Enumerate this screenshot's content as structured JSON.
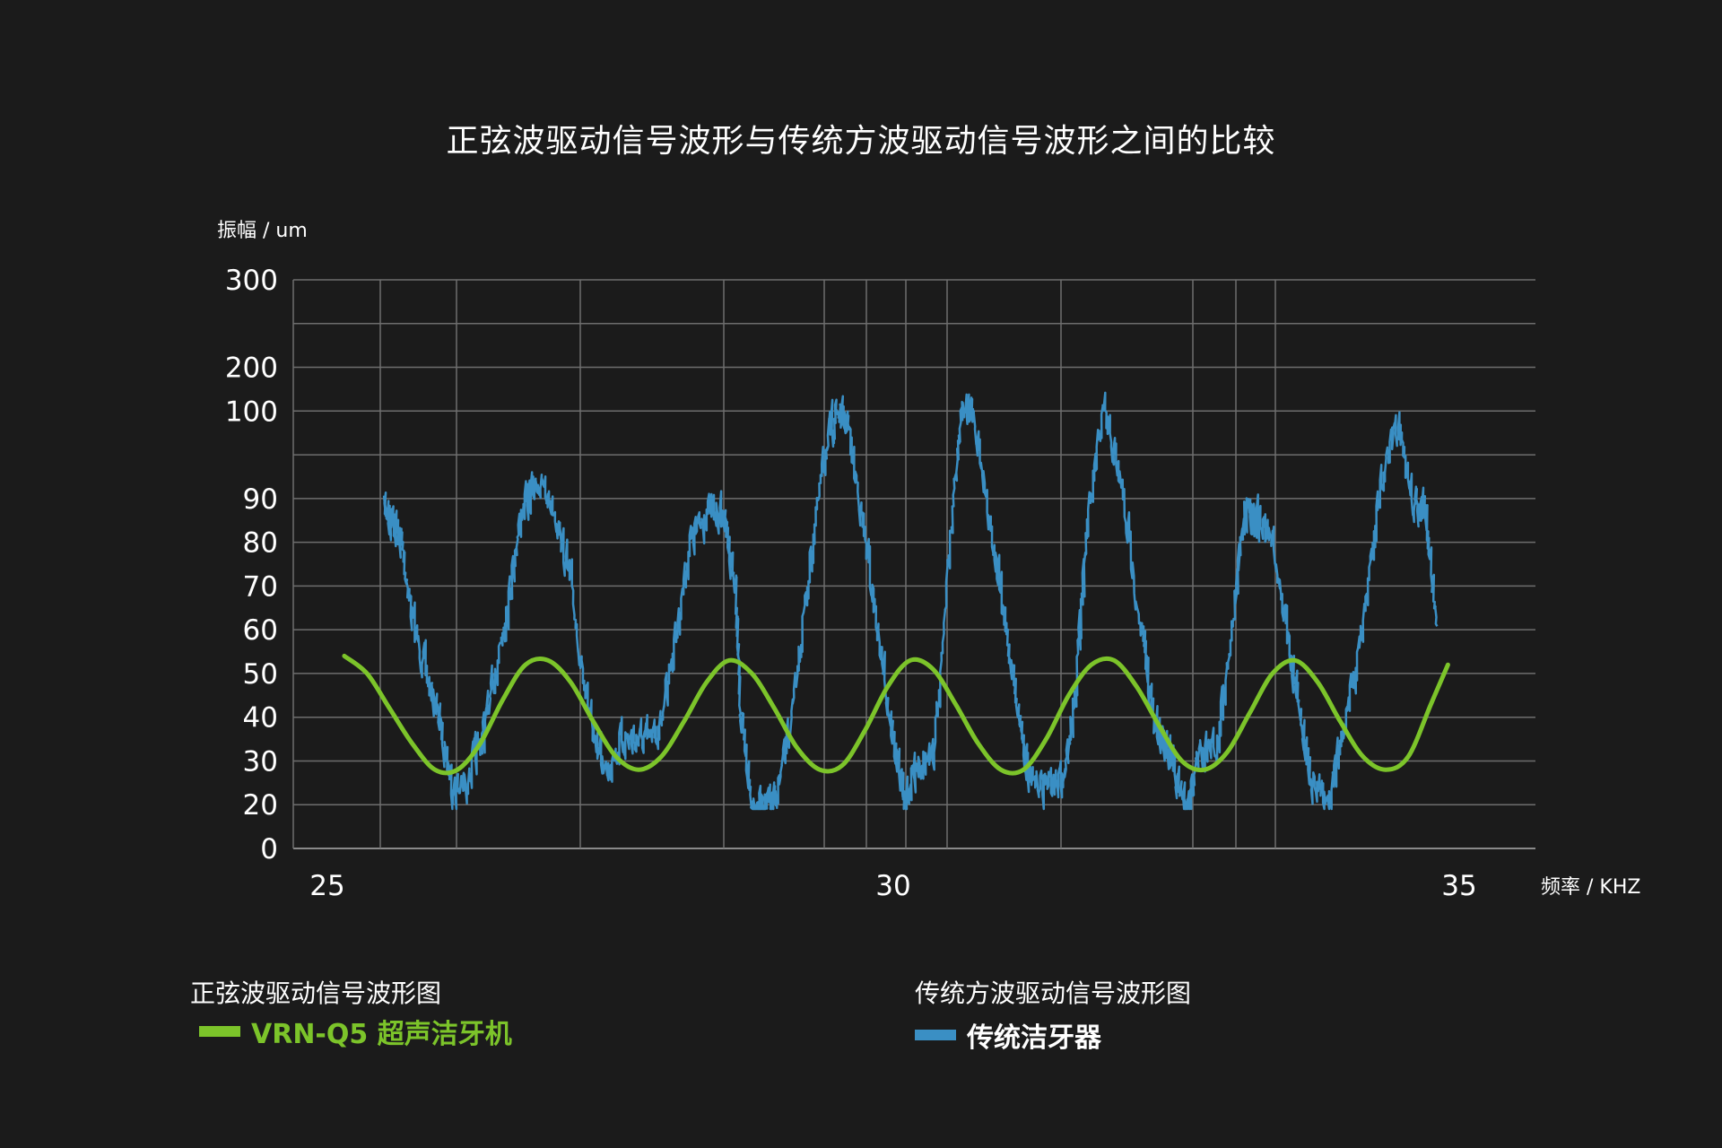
{
  "chart_data": {
    "type": "line",
    "title": "正弦波驱动信号波形与传统方波驱动信号波形之间的比较",
    "ylabel": "振幅 / um",
    "xlabel": "频率 / KHZ",
    "y_tick_labels": [
      "0",
      "20",
      "30",
      "40",
      "50",
      "60",
      "70",
      "80",
      "90",
      "100",
      "200",
      "300"
    ],
    "x_tick_labels": [
      "25",
      "30",
      "35"
    ],
    "xlim": [
      25,
      35
    ],
    "grid": true,
    "series": [
      {
        "name": "传统洁牙器",
        "color": "#3a8fc4",
        "x": [
          25.5,
          25.55,
          25.65,
          25.75,
          25.9,
          26.0,
          26.1,
          26.2,
          26.35,
          26.45,
          26.6,
          26.7,
          26.85,
          27.0,
          27.15,
          27.3,
          27.45,
          27.6,
          27.75,
          27.9,
          28.05,
          28.2,
          28.35,
          28.5,
          28.6,
          28.65,
          28.75,
          28.85,
          28.95,
          29.1,
          29.25,
          29.4,
          29.5,
          29.6,
          29.75,
          29.9,
          30.0,
          30.1,
          30.2,
          30.35,
          30.5,
          30.6,
          30.7,
          30.85,
          31.0,
          31.1,
          31.2,
          31.35,
          31.5,
          31.6,
          31.7,
          31.85,
          32.0,
          32.2,
          32.3,
          32.4,
          32.5,
          32.6,
          32.7,
          32.85,
          33.0,
          33.1,
          33.2,
          33.35,
          33.5,
          33.6,
          33.7,
          33.85,
          34.0,
          34.15,
          34.3,
          34.45,
          34.6,
          34.7,
          34.8
        ],
        "y": [
          88,
          86,
          80,
          62,
          47,
          38,
          24,
          24,
          34,
          46,
          68,
          86,
          92,
          88,
          70,
          40,
          28,
          35,
          35,
          35,
          55,
          80,
          87,
          86,
          70,
          38,
          20,
          20,
          20,
          40,
          73,
          96,
          103,
          98,
          80,
          52,
          34,
          20,
          30,
          30,
          82,
          100,
          101,
          85,
          58,
          42,
          25,
          25,
          25,
          45,
          82,
          100,
          92,
          58,
          38,
          35,
          25,
          20,
          33,
          33,
          63,
          88,
          86,
          80,
          55,
          38,
          25,
          22,
          40,
          62,
          92,
          98,
          88,
          86,
          60
        ]
      },
      {
        "name": "VRN-Q5 超声洁牙机",
        "color": "#7cc42a",
        "x": [
          25.15,
          25.35,
          25.55,
          25.75,
          25.95,
          26.15,
          26.35,
          26.55,
          26.75,
          26.95,
          27.15,
          27.35,
          27.55,
          27.75,
          27.95,
          28.15,
          28.35,
          28.55,
          28.75,
          28.95,
          29.15,
          29.35,
          29.55,
          29.75,
          29.95,
          30.15,
          30.35,
          30.55,
          30.75,
          30.95,
          31.15,
          31.35,
          31.55,
          31.75,
          31.95,
          32.15,
          32.35,
          32.55,
          32.75,
          32.95,
          33.15,
          33.35,
          33.55,
          33.75,
          33.95,
          34.15,
          34.35,
          34.55,
          34.75,
          34.9
        ],
        "y": [
          54,
          50,
          42,
          34,
          28,
          28,
          34,
          44,
          52,
          53,
          48,
          39,
          31,
          28,
          31,
          39,
          48,
          53,
          50,
          42,
          33,
          28,
          29,
          37,
          47,
          53,
          51,
          43,
          34,
          28,
          28,
          35,
          45,
          52,
          53,
          47,
          38,
          30,
          28,
          32,
          41,
          50,
          53,
          48,
          39,
          31,
          28,
          31,
          43,
          52
        ]
      }
    ]
  },
  "legend": {
    "left": {
      "heading": "正弦波驱动信号波形图",
      "label": "VRN-Q5 超声洁牙机"
    },
    "right": {
      "heading": "传统方波驱动信号波形图",
      "label": "传统洁牙器"
    }
  }
}
